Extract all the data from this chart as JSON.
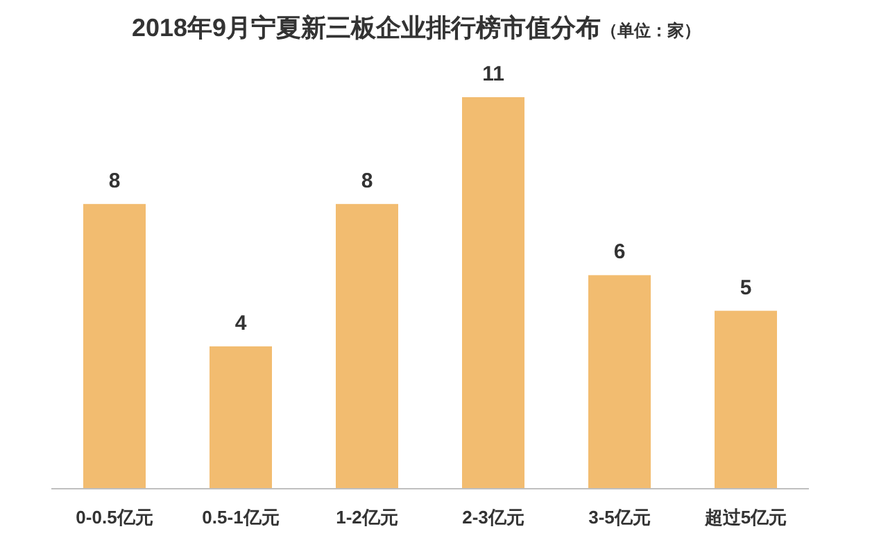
{
  "chart_data": {
    "type": "bar",
    "title": "2018年9月宁夏新三板企业排行榜市值分布",
    "subtitle": "（单位：家）",
    "categories": [
      "0-0.5亿元",
      "0.5-1亿元",
      "1-2亿元",
      "2-3亿元",
      "3-5亿元",
      "超过5亿元"
    ],
    "values": [
      8,
      4,
      8,
      11,
      6,
      5
    ],
    "color": "#f2bc70",
    "data_labels": true
  }
}
